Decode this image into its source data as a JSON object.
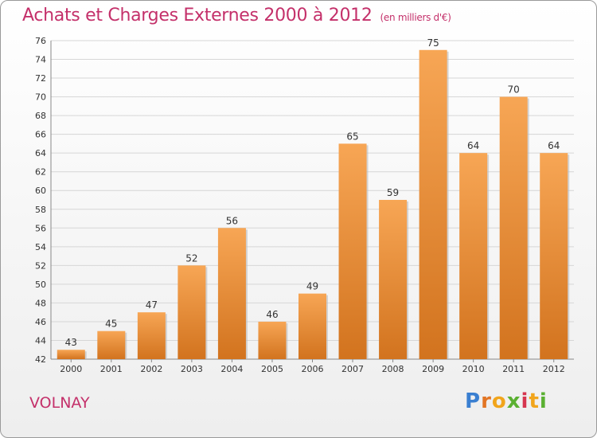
{
  "header": {
    "title": "Achats et Charges Externes 2000 à 2012",
    "subtitle": "(en milliers d'€)"
  },
  "commune": "VOLNAY",
  "logo": {
    "text": "Proxiti",
    "letter_colors": [
      "#3a7fd1",
      "#e27524",
      "#f1a51c",
      "#5ab031",
      "#d6354f",
      "#f1a51c",
      "#5ab031"
    ]
  },
  "colors": {
    "bar_light": "#f7a655",
    "bar_dark": "#d2731e",
    "accent": "#c4306a"
  },
  "chart_data": {
    "type": "bar",
    "categories": [
      "2000",
      "2001",
      "2002",
      "2003",
      "2004",
      "2005",
      "2006",
      "2007",
      "2008",
      "2009",
      "2010",
      "2011",
      "2012"
    ],
    "values": [
      43,
      45,
      47,
      52,
      56,
      46,
      49,
      65,
      59,
      75,
      64,
      70,
      64
    ],
    "ylim": [
      42,
      76
    ],
    "yticks": [
      42,
      44,
      46,
      48,
      50,
      52,
      54,
      56,
      58,
      60,
      62,
      64,
      66,
      68,
      70,
      72,
      74,
      76
    ],
    "grid": true,
    "data_labels": true
  }
}
